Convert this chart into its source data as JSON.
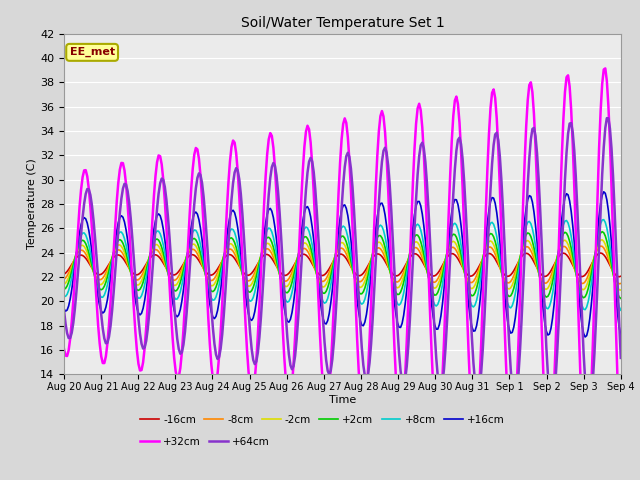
{
  "title": "Soil/Water Temperature Set 1",
  "xlabel": "Time",
  "ylabel": "Temperature (C)",
  "ylim": [
    14,
    42
  ],
  "yticks": [
    14,
    16,
    18,
    20,
    22,
    24,
    26,
    28,
    30,
    32,
    34,
    36,
    38,
    40,
    42
  ],
  "fig_bg_color": "#d8d8d8",
  "plot_bg_color": "#ebebeb",
  "grid_color": "#ffffff",
  "series": [
    {
      "label": "-16cm",
      "color": "#cc0000",
      "lw": 1.2
    },
    {
      "label": "-8cm",
      "color": "#ff8800",
      "lw": 1.2
    },
    {
      "label": "-2cm",
      "color": "#dddd00",
      "lw": 1.2
    },
    {
      "label": "+2cm",
      "color": "#00cc00",
      "lw": 1.2
    },
    {
      "label": "+8cm",
      "color": "#00cccc",
      "lw": 1.2
    },
    {
      "label": "+16cm",
      "color": "#0000cc",
      "lw": 1.2
    },
    {
      "label": "+32cm",
      "color": "#ff00ff",
      "lw": 1.8
    },
    {
      "label": "+64cm",
      "color": "#8833cc",
      "lw": 1.8
    }
  ],
  "annotation": {
    "text": "EE_met",
    "fontsize": 8,
    "color": "#880000",
    "bg": "#ffff99",
    "border": "#aaaa00"
  },
  "n_points": 360,
  "n_days": 15,
  "base_temp": 23.0,
  "series_params": [
    {
      "amp": 0.8,
      "phase": 0.3,
      "trend": 0.015
    },
    {
      "amp": 1.2,
      "phase": 0.2,
      "trend": 0.02
    },
    {
      "amp": 1.6,
      "phase": 0.1,
      "trend": 0.02
    },
    {
      "amp": 2.0,
      "phase": 0.0,
      "trend": 0.025
    },
    {
      "amp": 2.6,
      "phase": -0.15,
      "trend": 0.03
    },
    {
      "amp": 3.8,
      "phase": -0.3,
      "trend": 0.04
    },
    {
      "amp": 7.5,
      "phase": -0.4,
      "trend": 0.08
    },
    {
      "amp": 6.0,
      "phase": -0.9,
      "trend": 0.07
    }
  ],
  "xtick_labels": [
    "Aug 20",
    "Aug 21",
    "Aug 22",
    "Aug 23",
    "Aug 24",
    "Aug 25",
    "Aug 26",
    "Aug 27",
    "Aug 28",
    "Aug 29",
    "Aug 30",
    "Aug 31",
    "Sep 1",
    "Sep 2",
    "Sep 3",
    "Sep 4"
  ],
  "legend_ncol_row1": 6,
  "legend_labels_row1": [
    "-16cm",
    "-8cm",
    "-2cm",
    "+2cm",
    "+8cm",
    "+16cm"
  ],
  "legend_labels_row2": [
    "+32cm",
    "+64cm"
  ]
}
